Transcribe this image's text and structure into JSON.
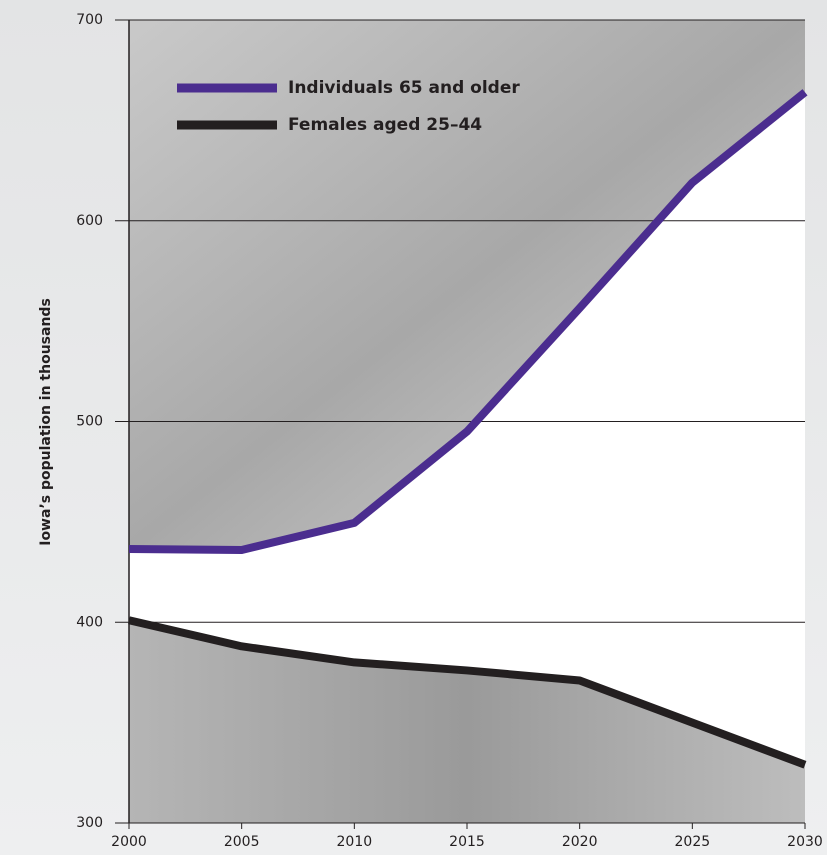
{
  "chart_data": {
    "type": "line",
    "y_label": "Iowa’s population in thousands",
    "x": [
      2000,
      2005,
      2010,
      2015,
      2020,
      2025,
      2030
    ],
    "series": [
      {
        "name": "Individuals 65 and older",
        "color": "#4b2d8f",
        "values": [
          436.5,
          436,
          449.5,
          495,
          556.5,
          619,
          664
        ]
      },
      {
        "name": "Females aged 25–44",
        "color": "#231f20",
        "values": [
          401,
          388,
          380,
          376,
          371,
          350,
          329
        ]
      }
    ],
    "xlim": [
      2000,
      2030
    ],
    "xticks": [
      2000,
      2005,
      2010,
      2015,
      2020,
      2025,
      2030
    ],
    "ylim": [
      300,
      700
    ],
    "yticks": [
      300,
      400,
      500,
      600,
      700
    ],
    "grid": true
  }
}
